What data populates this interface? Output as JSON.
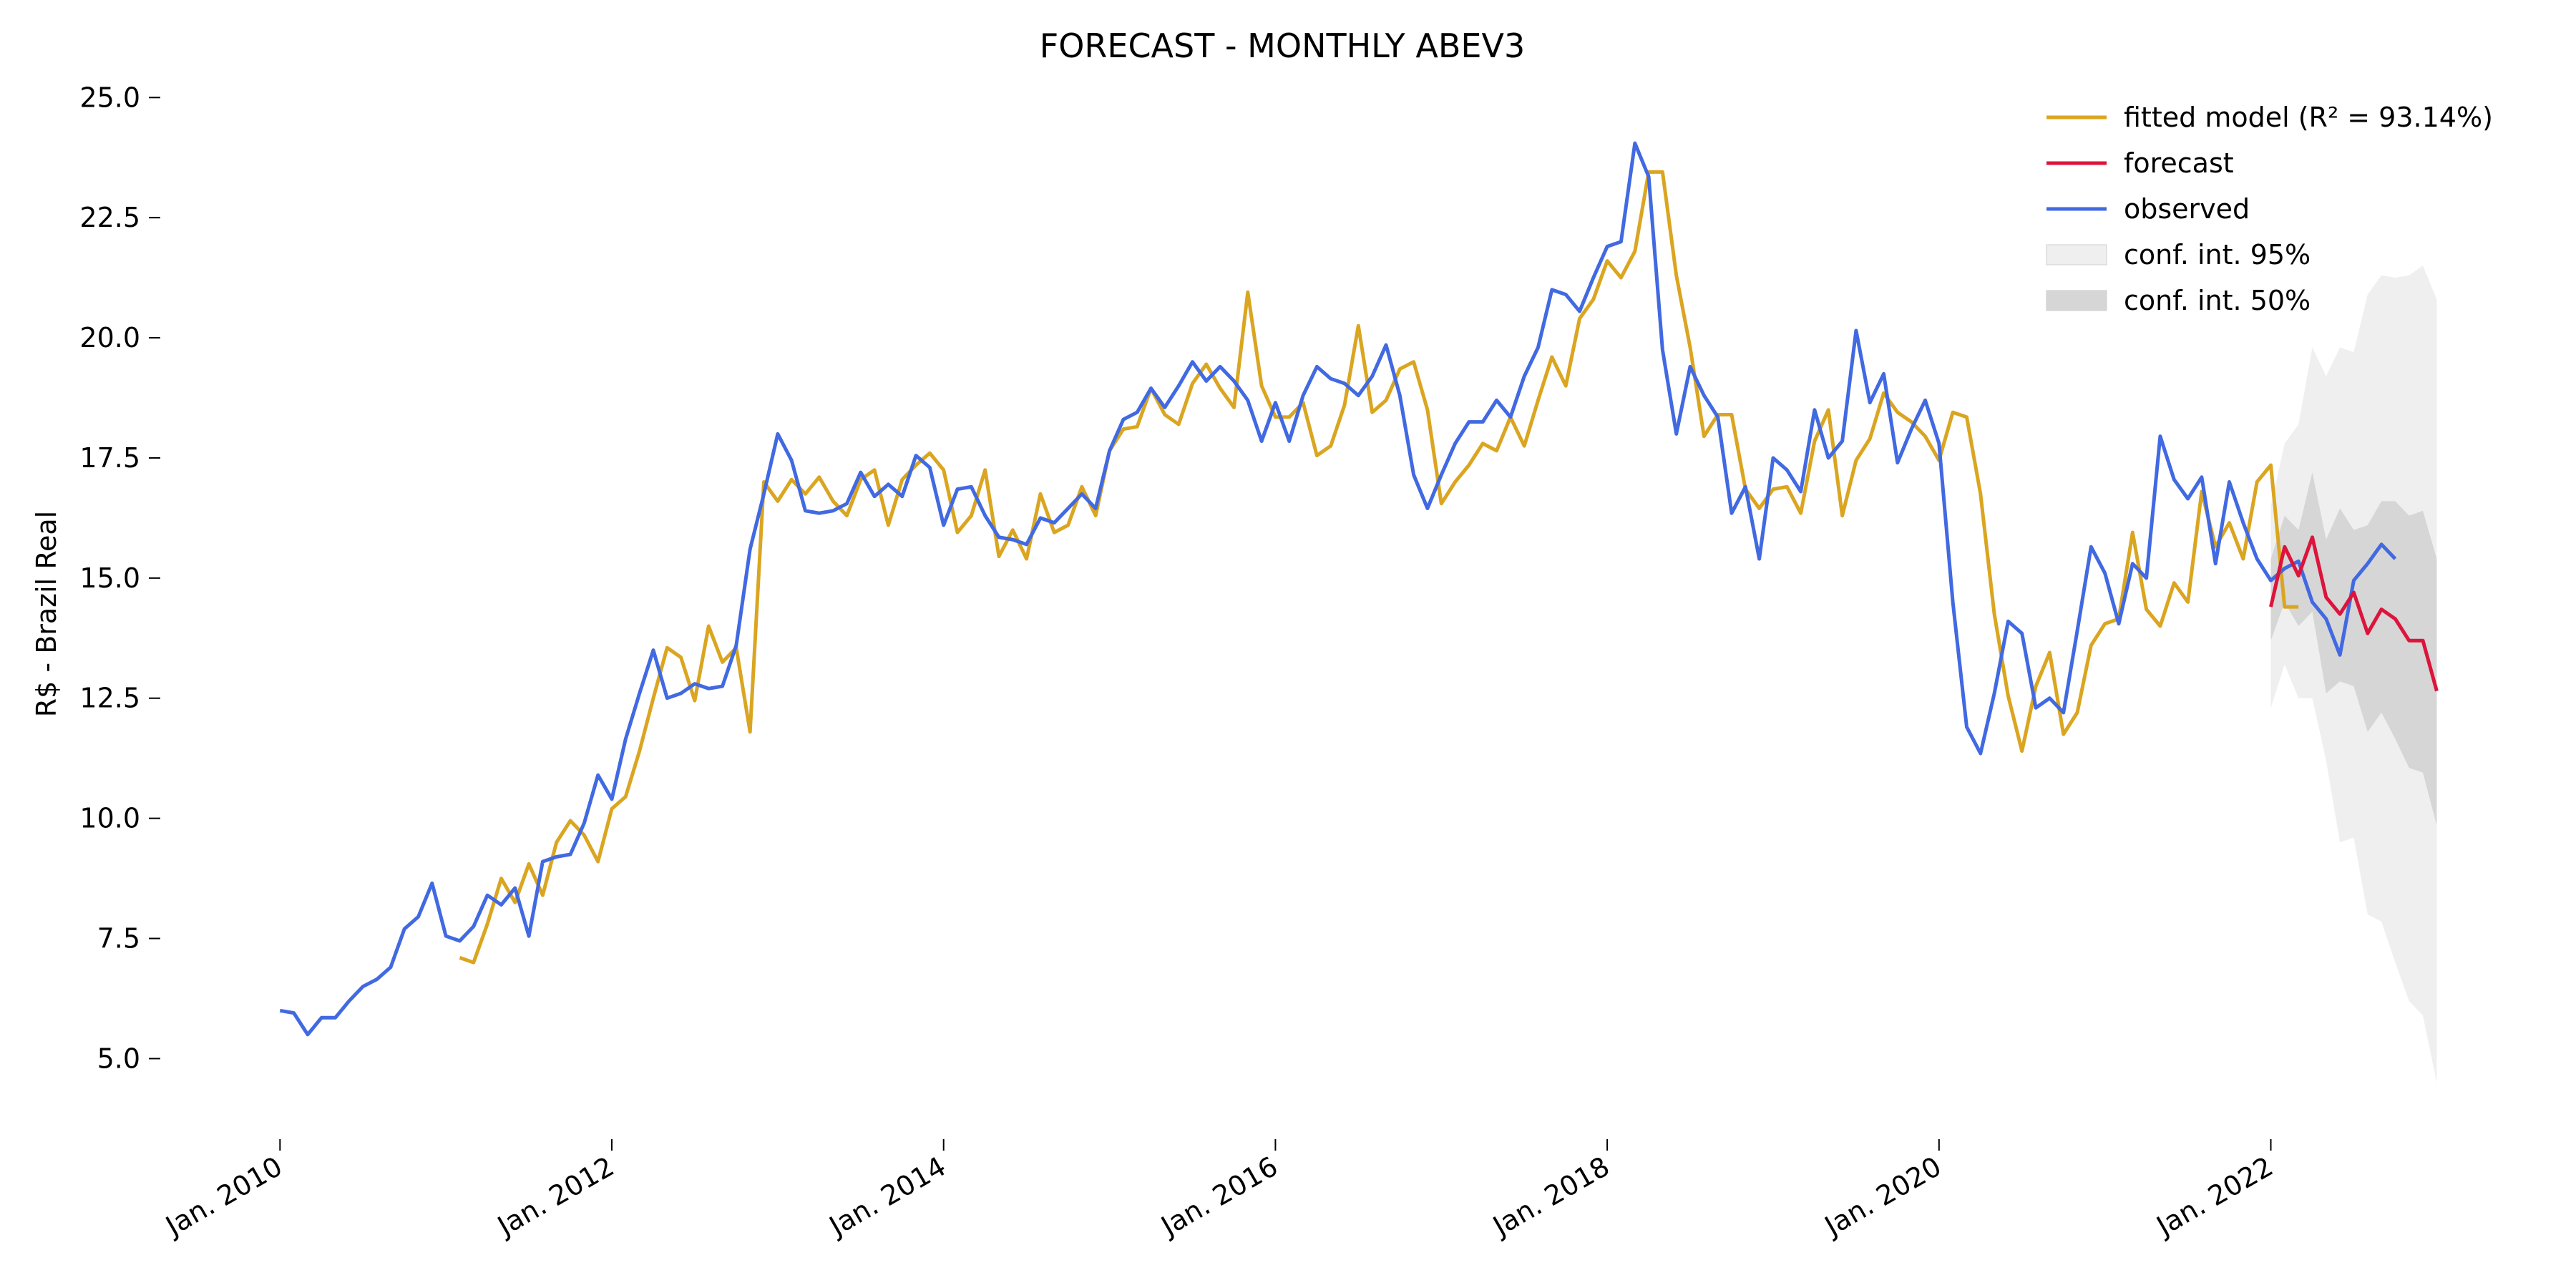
{
  "chart_data": {
    "type": "line",
    "title": "FORECAST - MONTHLY ABEV3",
    "xlabel": "",
    "ylabel": "R$ - Brazil Real",
    "x_unit": "month",
    "xlim": [
      "2009-12",
      "2023-03"
    ],
    "ylim": [
      3.8,
      25.6
    ],
    "y_ticks": [
      5.0,
      7.5,
      10.0,
      12.5,
      15.0,
      17.5,
      20.0,
      22.5,
      25.0
    ],
    "y_tick_labels": [
      "5.0",
      "7.5",
      "10.0",
      "12.5",
      "15.0",
      "17.5",
      "20.0",
      "22.5",
      "25.0"
    ],
    "x_ticks": [
      "2010-01",
      "2012-01",
      "2014-01",
      "2016-01",
      "2018-01",
      "2020-01",
      "2022-01"
    ],
    "x_tick_labels": [
      "Jan. 2010",
      "Jan. 2012",
      "Jan. 2014",
      "Jan. 2016",
      "Jan. 2018",
      "Jan. 2020",
      "Jan. 2022"
    ],
    "grid": false,
    "legend_position": "top-right",
    "colors": {
      "fitted": "#daa520",
      "forecast": "#dc143c",
      "observed": "#4169e1",
      "ci95": "#efefef",
      "ci50": "#d6d6d6"
    },
    "series": [
      {
        "name": "observed",
        "start": "2010-01",
        "values": [
          6.0,
          5.95,
          5.5,
          5.85,
          5.85,
          6.2,
          6.5,
          6.65,
          6.9,
          7.7,
          7.95,
          8.65,
          7.55,
          7.45,
          7.75,
          8.4,
          8.2,
          8.55,
          7.55,
          9.1,
          9.2,
          9.25,
          9.9,
          10.9,
          10.4,
          11.65,
          12.6,
          13.5,
          12.5,
          12.6,
          12.8,
          12.7,
          12.75,
          13.6,
          15.6,
          16.75,
          18.0,
          17.45,
          16.4,
          16.35,
          16.4,
          16.55,
          17.2,
          16.7,
          16.95,
          16.7,
          17.55,
          17.3,
          16.1,
          16.85,
          16.9,
          16.3,
          15.85,
          15.8,
          15.7,
          16.25,
          16.15,
          16.45,
          16.75,
          16.45,
          17.65,
          18.3,
          18.45,
          18.95,
          18.55,
          19.0,
          19.5,
          19.1,
          19.4,
          19.1,
          18.7,
          17.85,
          18.65,
          17.85,
          18.8,
          19.4,
          19.15,
          19.05,
          18.8,
          19.2,
          19.85,
          18.8,
          17.15,
          16.45,
          17.15,
          17.8,
          18.25,
          18.25,
          18.7,
          18.35,
          19.2,
          19.8,
          21.0,
          20.9,
          20.55,
          21.25,
          21.9,
          22.0,
          24.05,
          23.35,
          19.75,
          18.0,
          19.4,
          18.8,
          18.35,
          16.35,
          16.9,
          15.4,
          17.5,
          17.25,
          16.8,
          18.5,
          17.5,
          17.85,
          20.15,
          18.65,
          19.25,
          17.4,
          18.1,
          18.7,
          17.8,
          14.5,
          11.9,
          11.35,
          12.6,
          14.1,
          13.85,
          12.3,
          12.5,
          12.2,
          13.9,
          15.65,
          15.1,
          14.05,
          15.3,
          15.0,
          17.95,
          17.05,
          16.65,
          17.1,
          15.3,
          17.0,
          16.15,
          15.4,
          14.95,
          15.2,
          15.35,
          14.5,
          14.15,
          13.4,
          14.95,
          15.3,
          15.7,
          15.4
        ]
      },
      {
        "name": "fitted model (R² = 93.14%)",
        "start": "2011-02",
        "values": [
          7.1,
          7.0,
          7.8,
          8.75,
          8.25,
          9.05,
          8.4,
          9.5,
          9.95,
          9.65,
          9.1,
          10.2,
          10.45,
          11.4,
          12.5,
          13.55,
          13.35,
          12.45,
          14.0,
          13.25,
          13.55,
          11.8,
          17.0,
          16.6,
          17.05,
          16.75,
          17.1,
          16.6,
          16.3,
          17.05,
          17.25,
          16.1,
          17.05,
          17.35,
          17.6,
          17.25,
          15.95,
          16.3,
          17.25,
          15.45,
          16.0,
          15.4,
          16.75,
          15.95,
          16.1,
          16.9,
          16.3,
          17.65,
          18.1,
          18.15,
          18.95,
          18.4,
          18.2,
          19.05,
          19.45,
          18.95,
          18.55,
          20.95,
          19.0,
          18.35,
          18.35,
          18.65,
          17.55,
          17.75,
          18.6,
          20.25,
          18.45,
          18.7,
          19.35,
          19.5,
          18.5,
          16.55,
          17.0,
          17.35,
          17.8,
          17.65,
          18.35,
          17.75,
          18.7,
          19.6,
          19.0,
          20.4,
          20.8,
          21.6,
          21.25,
          21.8,
          23.45,
          23.45,
          21.3,
          19.8,
          17.95,
          18.4,
          18.4,
          16.85,
          16.45,
          16.85,
          16.9,
          16.35,
          17.85,
          18.5,
          16.3,
          17.45,
          17.9,
          18.85,
          18.45,
          18.25,
          17.95,
          17.45,
          18.45,
          18.35,
          16.75,
          14.25,
          12.55,
          11.4,
          12.75,
          13.45,
          11.75,
          12.2,
          13.6,
          14.05,
          14.15,
          15.95,
          14.35,
          14.0,
          14.9,
          14.5,
          16.8,
          15.65,
          16.15,
          15.4,
          17.0,
          17.35,
          14.4,
          14.4
        ]
      },
      {
        "name": "forecast",
        "start": "2022-01",
        "values": [
          14.4,
          15.65,
          15.05,
          15.85,
          14.6,
          14.25,
          14.7,
          13.85,
          14.35,
          14.15,
          13.7,
          13.7,
          12.65
        ]
      }
    ],
    "conf_int_95": {
      "name": "conf. int. 95%",
      "start": "2022-01",
      "lower": [
        12.3,
        13.2,
        12.5,
        12.5,
        11.2,
        9.5,
        9.6,
        8.0,
        7.85,
        7.0,
        6.2,
        5.9,
        4.5
      ],
      "upper": [
        16.5,
        17.8,
        18.2,
        19.8,
        19.2,
        19.8,
        19.7,
        20.9,
        21.3,
        21.25,
        21.3,
        21.5,
        20.8
      ]
    },
    "conf_int_50": {
      "name": "conf. int. 50%",
      "start": "2022-01",
      "lower": [
        13.7,
        14.5,
        14.0,
        14.3,
        12.6,
        12.85,
        12.75,
        11.8,
        12.2,
        11.65,
        11.05,
        10.95,
        9.85
      ],
      "upper": [
        15.4,
        16.3,
        16.0,
        17.2,
        15.8,
        16.45,
        16.0,
        16.1,
        16.6,
        16.6,
        16.3,
        16.4,
        15.4
      ]
    },
    "legend": [
      {
        "label": "fitted model (R² = 93.14%)",
        "kind": "line",
        "color": "#daa520"
      },
      {
        "label": "forecast",
        "kind": "line",
        "color": "#dc143c"
      },
      {
        "label": "observed",
        "kind": "line",
        "color": "#4169e1"
      },
      {
        "label": "conf. int. 95%",
        "kind": "patch",
        "color": "#efefef"
      },
      {
        "label": "conf. int. 50%",
        "kind": "patch",
        "color": "#d6d6d6"
      }
    ]
  }
}
